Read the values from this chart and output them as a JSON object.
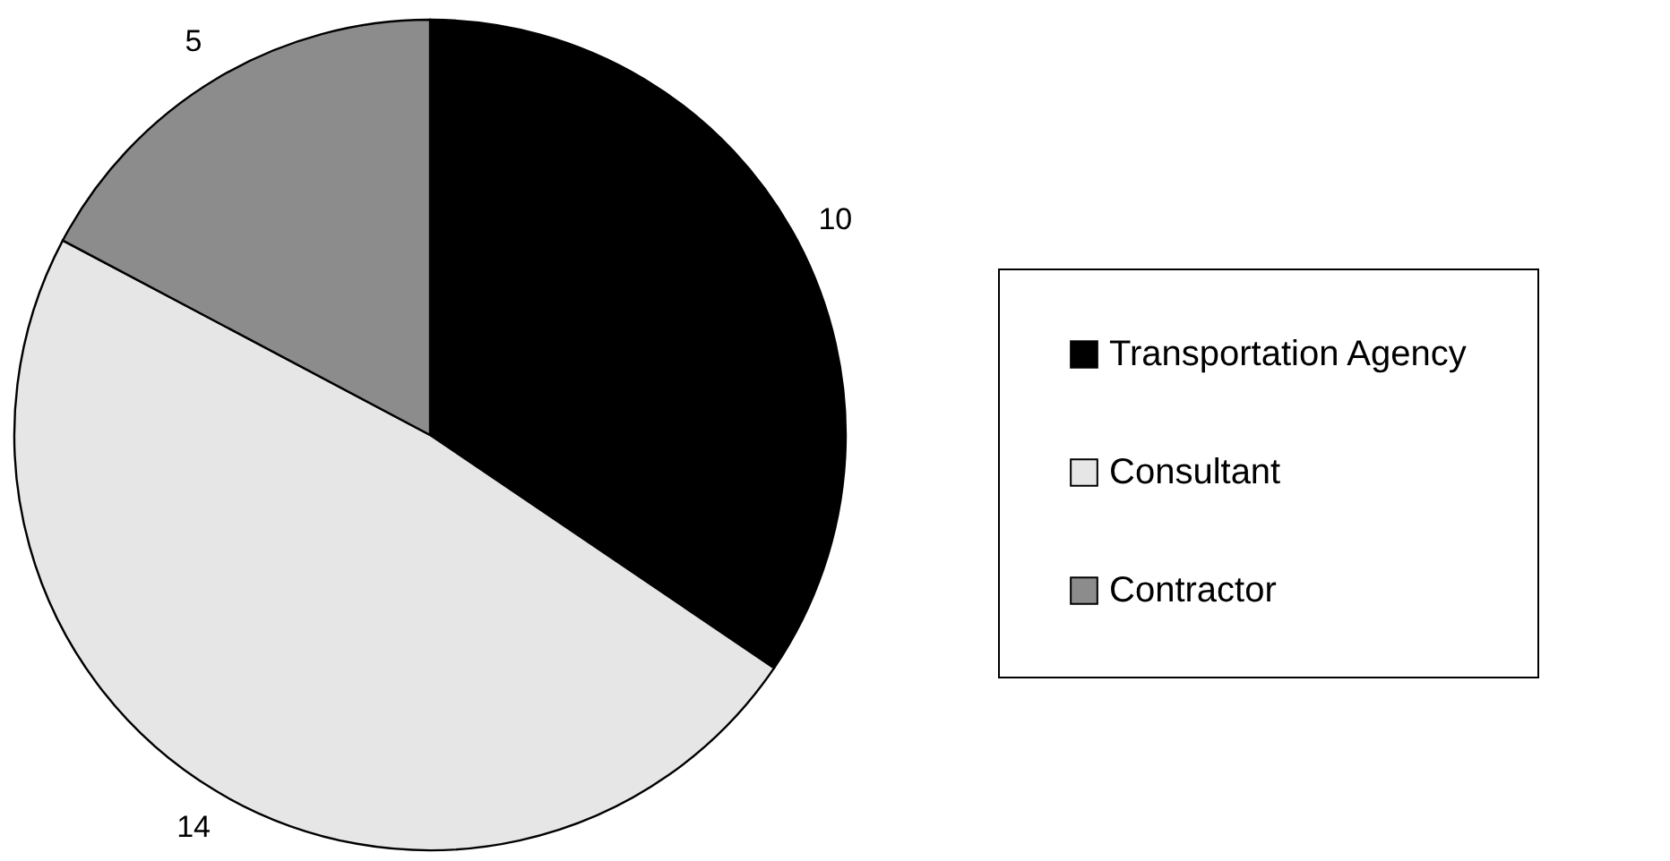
{
  "chart_data": {
    "type": "pie",
    "categories": [
      "Transportation Agency",
      "Consultant",
      "Contractor"
    ],
    "values": [
      10,
      14,
      5
    ],
    "colors": [
      "#000000",
      "#e6e6e6",
      "#8c8c8c"
    ],
    "data_labels": true,
    "legend": "right"
  }
}
